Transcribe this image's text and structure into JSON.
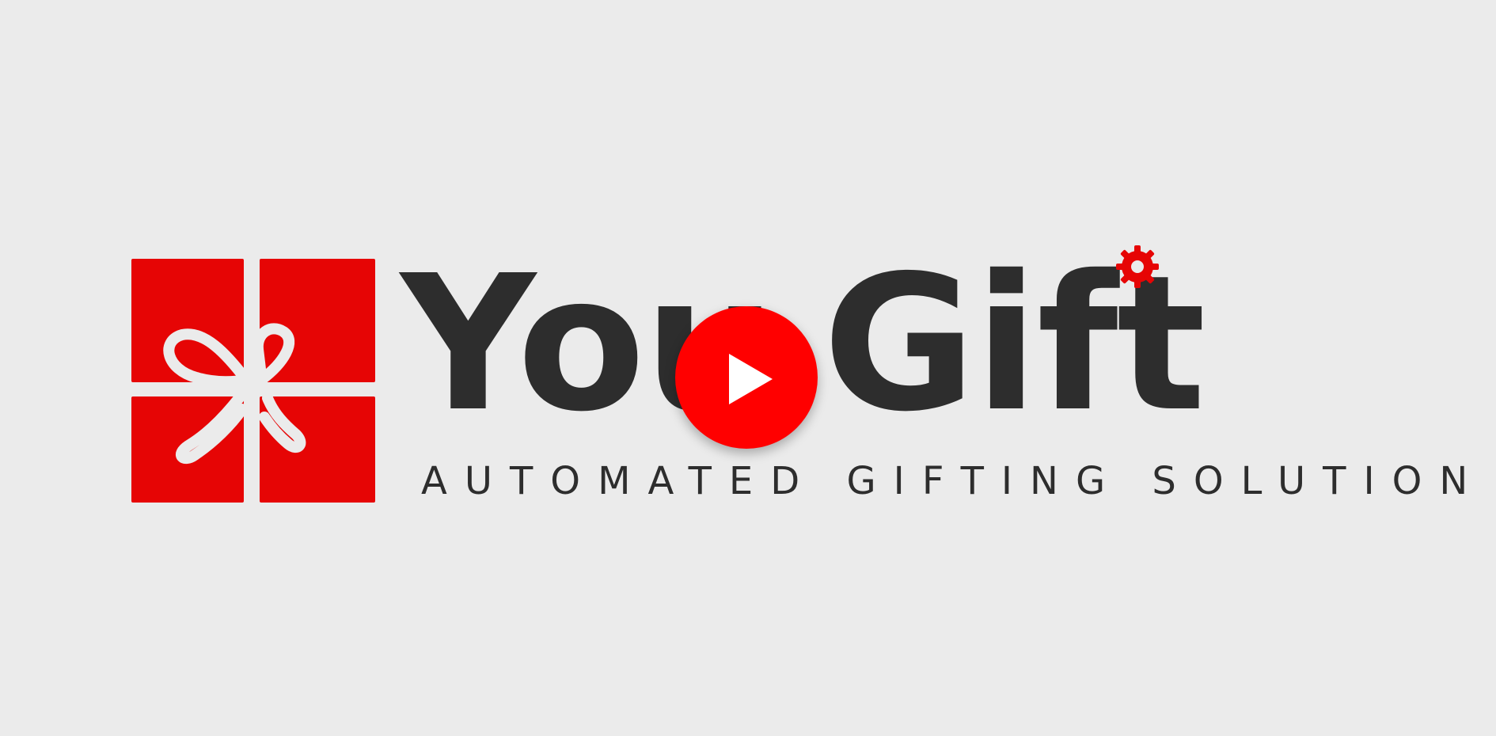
{
  "brand": {
    "word_part_1": "You",
    "word_part_2": "Gift",
    "tagline": "AUTOMATED GIFTING SOLUTION"
  },
  "icons": {
    "logo": "gift-box-logo",
    "gear": "gear-icon",
    "play": "play-icon"
  },
  "colors": {
    "background": "#ebebeb",
    "brand_red": "#e60505",
    "text_dark": "#2d2d2d",
    "play_red": "#ff0000"
  }
}
